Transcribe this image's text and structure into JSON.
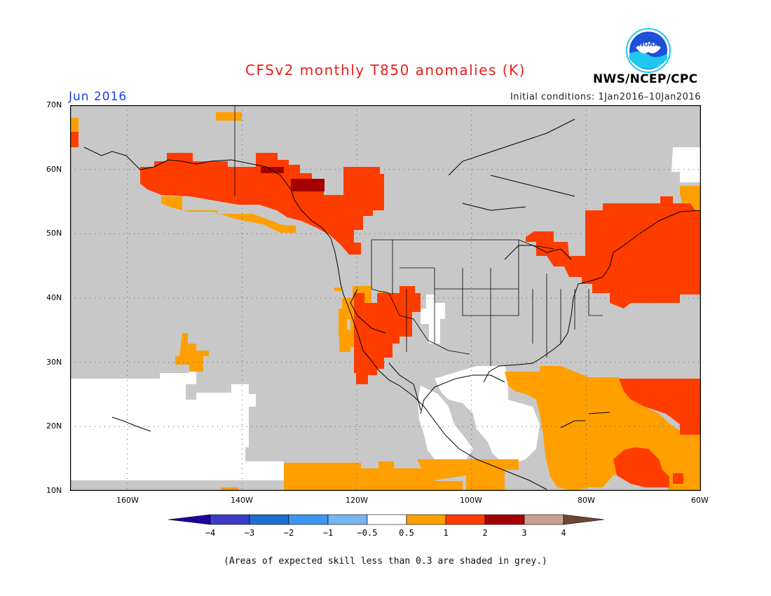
{
  "header": {
    "title": "CFSv2 monthly T850 anomalies (K)",
    "month": "Jun 2016",
    "initial_conditions": "Initial conditions: 1Jan2016–10Jan2016",
    "agency": "NWS/NCEP/CPC",
    "logo_text": "NOAA"
  },
  "map": {
    "lat_labels": [
      "70N",
      "60N",
      "50N",
      "40N",
      "30N",
      "20N",
      "10N"
    ],
    "lon_labels": [
      "160W",
      "140W",
      "120W",
      "100W",
      "80W",
      "60W"
    ],
    "colors": {
      "land_grey": "#c8c8c8",
      "low_skill": "#c8c8c8",
      "near_normal": "#ffffff",
      "a_0_5_1": "#ffa000",
      "a_1_2": "#ff3c00",
      "a_2_3": "#a50000"
    }
  },
  "legend": {
    "labels": [
      "−4",
      "−3",
      "−2",
      "−1",
      "−0.5",
      "0.5",
      "1",
      "2",
      "3",
      "4"
    ],
    "colors": [
      "#1e00a0",
      "#3c3cc8",
      "#1e6ed2",
      "#3c96f0",
      "#78b4f0",
      "#ffffff",
      "#ffa000",
      "#ff3c00",
      "#a50000",
      "#c8a090",
      "#6e4632"
    ]
  },
  "footnote": "(Areas of expected skill less than 0.3 are shaded in grey.)"
}
